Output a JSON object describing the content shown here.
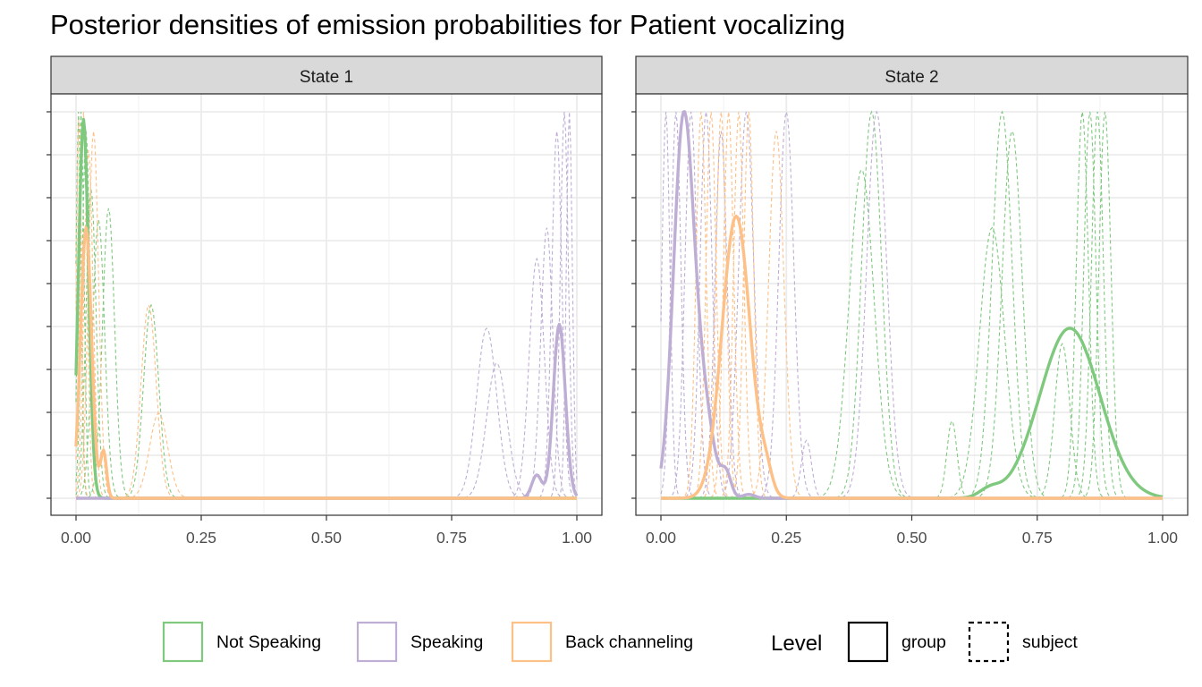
{
  "chart_data": {
    "type": "line",
    "title": "Posterior densities of emission probabilities for Patient vocalizing",
    "xlabel": "",
    "ylabel": "",
    "xlim": [
      0,
      1
    ],
    "x_ticks": [
      "0.00",
      "0.25",
      "0.50",
      "0.75",
      "1.00"
    ],
    "grid": true,
    "legend_position": "bottom",
    "colors": {
      "Not Speaking": "#7fc97f",
      "Speaking": "#beaed4",
      "Back channeling": "#fdc086"
    },
    "legend": {
      "categories": [
        "Not Speaking",
        "Speaking",
        "Back channeling"
      ],
      "level_title": "Level",
      "levels": [
        "group",
        "subject"
      ]
    },
    "panels": [
      {
        "label": "State 1",
        "y_max": 1.0,
        "group_series": [
          {
            "name": "Not Speaking",
            "peaks": [
              {
                "mean": 0.015,
                "sd": 0.01,
                "height": 0.98
              }
            ]
          },
          {
            "name": "Speaking",
            "peaks": [
              {
                "mean": 0.965,
                "sd": 0.012,
                "height": 0.45
              },
              {
                "mean": 0.92,
                "sd": 0.01,
                "height": 0.06
              }
            ]
          },
          {
            "name": "Back channeling",
            "peaks": [
              {
                "mean": 0.02,
                "sd": 0.011,
                "height": 0.7
              },
              {
                "mean": 0.055,
                "sd": 0.006,
                "height": 0.12
              }
            ]
          }
        ],
        "subject_series": [
          {
            "name": "Not Speaking",
            "peaks": [
              {
                "mean": 0.005,
                "sd": 0.005,
                "height": 1.0
              }
            ]
          },
          {
            "name": "Not Speaking",
            "peaks": [
              {
                "mean": 0.01,
                "sd": 0.006,
                "height": 1.0
              }
            ]
          },
          {
            "name": "Not Speaking",
            "peaks": [
              {
                "mean": 0.02,
                "sd": 0.008,
                "height": 0.95
              }
            ]
          },
          {
            "name": "Not Speaking",
            "peaks": [
              {
                "mean": 0.03,
                "sd": 0.01,
                "height": 0.8
              }
            ]
          },
          {
            "name": "Not Speaking",
            "peaks": [
              {
                "mean": 0.045,
                "sd": 0.012,
                "height": 0.72
              }
            ]
          },
          {
            "name": "Not Speaking",
            "peaks": [
              {
                "mean": 0.065,
                "sd": 0.012,
                "height": 0.75
              }
            ]
          },
          {
            "name": "Not Speaking",
            "peaks": [
              {
                "mean": 0.15,
                "sd": 0.015,
                "height": 0.5
              }
            ]
          },
          {
            "name": "Speaking",
            "peaks": [
              {
                "mean": 0.82,
                "sd": 0.02,
                "height": 0.44
              }
            ]
          },
          {
            "name": "Speaking",
            "peaks": [
              {
                "mean": 0.84,
                "sd": 0.02,
                "height": 0.35
              }
            ]
          },
          {
            "name": "Speaking",
            "peaks": [
              {
                "mean": 0.92,
                "sd": 0.015,
                "height": 0.62
              }
            ]
          },
          {
            "name": "Speaking",
            "peaks": [
              {
                "mean": 0.94,
                "sd": 0.012,
                "height": 0.7
              }
            ]
          },
          {
            "name": "Speaking",
            "peaks": [
              {
                "mean": 0.96,
                "sd": 0.01,
                "height": 0.95
              }
            ]
          },
          {
            "name": "Speaking",
            "peaks": [
              {
                "mean": 0.975,
                "sd": 0.008,
                "height": 1.0
              }
            ]
          },
          {
            "name": "Speaking",
            "peaks": [
              {
                "mean": 0.985,
                "sd": 0.006,
                "height": 1.0
              }
            ]
          },
          {
            "name": "Back channeling",
            "peaks": [
              {
                "mean": 0.006,
                "sd": 0.005,
                "height": 1.0
              }
            ]
          },
          {
            "name": "Back channeling",
            "peaks": [
              {
                "mean": 0.015,
                "sd": 0.007,
                "height": 1.0
              }
            ]
          },
          {
            "name": "Back channeling",
            "peaks": [
              {
                "mean": 0.025,
                "sd": 0.009,
                "height": 0.9
              }
            ]
          },
          {
            "name": "Back channeling",
            "peaks": [
              {
                "mean": 0.035,
                "sd": 0.01,
                "height": 0.95
              }
            ]
          },
          {
            "name": "Back channeling",
            "peaks": [
              {
                "mean": 0.145,
                "sd": 0.015,
                "height": 0.5
              }
            ]
          },
          {
            "name": "Back channeling",
            "peaks": [
              {
                "mean": 0.165,
                "sd": 0.018,
                "height": 0.22
              }
            ]
          }
        ]
      },
      {
        "label": "State 2",
        "y_max": 1.0,
        "group_series": [
          {
            "name": "Not Speaking",
            "peaks": [
              {
                "mean": 0.815,
                "sd": 0.06,
                "height": 0.44
              },
              {
                "mean": 0.655,
                "sd": 0.02,
                "height": 0.02
              }
            ]
          },
          {
            "name": "Speaking",
            "peaks": [
              {
                "mean": 0.045,
                "sd": 0.02,
                "height": 0.97
              },
              {
                "mean": 0.085,
                "sd": 0.02,
                "height": 0.22
              },
              {
                "mean": 0.13,
                "sd": 0.01,
                "height": 0.06
              },
              {
                "mean": 0.175,
                "sd": 0.012,
                "height": 0.01
              }
            ]
          },
          {
            "name": "Back channeling",
            "peaks": [
              {
                "mean": 0.15,
                "sd": 0.028,
                "height": 0.73
              },
              {
                "mean": 0.21,
                "sd": 0.012,
                "height": 0.05
              }
            ]
          }
        ],
        "subject_series": [
          {
            "name": "Not Speaking",
            "peaks": [
              {
                "mean": 0.4,
                "sd": 0.025,
                "height": 0.85
              }
            ]
          },
          {
            "name": "Not Speaking",
            "peaks": [
              {
                "mean": 0.42,
                "sd": 0.02,
                "height": 1.0
              }
            ]
          },
          {
            "name": "Not Speaking",
            "peaks": [
              {
                "mean": 0.58,
                "sd": 0.01,
                "height": 0.2
              }
            ]
          },
          {
            "name": "Not Speaking",
            "peaks": [
              {
                "mean": 0.66,
                "sd": 0.025,
                "height": 0.7
              }
            ]
          },
          {
            "name": "Not Speaking",
            "peaks": [
              {
                "mean": 0.68,
                "sd": 0.02,
                "height": 1.0
              }
            ]
          },
          {
            "name": "Not Speaking",
            "peaks": [
              {
                "mean": 0.7,
                "sd": 0.02,
                "height": 0.95
              }
            ]
          },
          {
            "name": "Not Speaking",
            "peaks": [
              {
                "mean": 0.8,
                "sd": 0.015,
                "height": 0.4
              }
            ]
          },
          {
            "name": "Not Speaking",
            "peaks": [
              {
                "mean": 0.84,
                "sd": 0.012,
                "height": 1.0
              }
            ]
          },
          {
            "name": "Not Speaking",
            "peaks": [
              {
                "mean": 0.855,
                "sd": 0.012,
                "height": 1.0
              }
            ]
          },
          {
            "name": "Not Speaking",
            "peaks": [
              {
                "mean": 0.87,
                "sd": 0.012,
                "height": 1.0
              }
            ]
          },
          {
            "name": "Not Speaking",
            "peaks": [
              {
                "mean": 0.885,
                "sd": 0.012,
                "height": 1.0
              }
            ]
          },
          {
            "name": "Speaking",
            "peaks": [
              {
                "mean": 0.01,
                "sd": 0.008,
                "height": 1.0
              }
            ]
          },
          {
            "name": "Speaking",
            "peaks": [
              {
                "mean": 0.03,
                "sd": 0.01,
                "height": 1.0
              }
            ]
          },
          {
            "name": "Speaking",
            "peaks": [
              {
                "mean": 0.06,
                "sd": 0.012,
                "height": 1.0
              }
            ]
          },
          {
            "name": "Speaking",
            "peaks": [
              {
                "mean": 0.09,
                "sd": 0.012,
                "height": 1.0
              }
            ]
          },
          {
            "name": "Speaking",
            "peaks": [
              {
                "mean": 0.12,
                "sd": 0.012,
                "height": 0.95
              }
            ]
          },
          {
            "name": "Speaking",
            "peaks": [
              {
                "mean": 0.17,
                "sd": 0.015,
                "height": 1.0
              }
            ]
          },
          {
            "name": "Speaking",
            "peaks": [
              {
                "mean": 0.25,
                "sd": 0.015,
                "height": 1.0
              }
            ]
          },
          {
            "name": "Speaking",
            "peaks": [
              {
                "mean": 0.29,
                "sd": 0.01,
                "height": 0.15
              }
            ]
          },
          {
            "name": "Speaking",
            "peaks": [
              {
                "mean": 0.43,
                "sd": 0.02,
                "height": 1.0
              }
            ]
          },
          {
            "name": "Back channeling",
            "peaks": [
              {
                "mean": 0.08,
                "sd": 0.01,
                "height": 1.0
              }
            ]
          },
          {
            "name": "Back channeling",
            "peaks": [
              {
                "mean": 0.1,
                "sd": 0.01,
                "height": 1.0
              }
            ]
          },
          {
            "name": "Back channeling",
            "peaks": [
              {
                "mean": 0.12,
                "sd": 0.01,
                "height": 1.0
              }
            ]
          },
          {
            "name": "Back channeling",
            "peaks": [
              {
                "mean": 0.135,
                "sd": 0.01,
                "height": 1.0
              }
            ]
          },
          {
            "name": "Back channeling",
            "peaks": [
              {
                "mean": 0.155,
                "sd": 0.01,
                "height": 1.0
              }
            ]
          },
          {
            "name": "Back channeling",
            "peaks": [
              {
                "mean": 0.175,
                "sd": 0.01,
                "height": 1.0
              }
            ]
          },
          {
            "name": "Back channeling",
            "peaks": [
              {
                "mean": 0.23,
                "sd": 0.015,
                "height": 0.95
              }
            ]
          }
        ]
      }
    ]
  }
}
